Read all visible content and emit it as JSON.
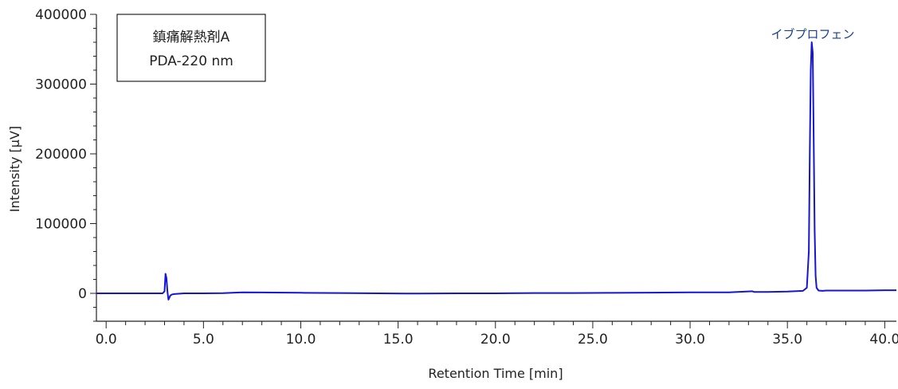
{
  "chart_data": {
    "type": "line",
    "title": "",
    "xlabel": "Retention Time [min]",
    "ylabel": "Intensity [µV]",
    "xlim": [
      -0.5,
      40.6
    ],
    "ylim": [
      -40000,
      400000
    ],
    "x_ticks": [
      "0.0",
      "5.0",
      "10.0",
      "15.0",
      "20.0",
      "25.0",
      "30.0",
      "35.0",
      "40.0"
    ],
    "x_tick_values": [
      0,
      5,
      10,
      15,
      20,
      25,
      30,
      35,
      40
    ],
    "y_ticks": [
      "0",
      "100000",
      "200000",
      "300000",
      "400000"
    ],
    "y_tick_values": [
      0,
      100000,
      200000,
      300000,
      400000
    ],
    "legend": {
      "lines": [
        "鎮痛解熱剤A",
        "PDA-220 nm"
      ],
      "placement": "top-left"
    },
    "annotations": [
      {
        "text": "イブプロフェン",
        "x": 36.3,
        "y": 360000
      }
    ],
    "series": [
      {
        "color": "#1515d4",
        "x": [
          -0.5,
          0.0,
          1.0,
          2.0,
          2.9,
          3.0,
          3.05,
          3.1,
          3.15,
          3.2,
          3.25,
          3.3,
          3.4,
          3.5,
          4.0,
          5.0,
          6.0,
          7.0,
          8.0,
          10.0,
          12.0,
          14.0,
          16.0,
          18.0,
          20.0,
          22.0,
          24.0,
          26.0,
          28.0,
          30.0,
          32.0,
          33.2,
          33.3,
          34.0,
          35.0,
          35.8,
          36.0,
          36.1,
          36.15,
          36.2,
          36.25,
          36.3,
          36.35,
          36.4,
          36.45,
          36.5,
          36.6,
          36.8,
          37.0,
          38.0,
          39.0,
          40.0,
          40.6
        ],
        "y": [
          0,
          0,
          0,
          0,
          0,
          3000,
          28000,
          22000,
          2000,
          -9000,
          -6000,
          -3000,
          -1500,
          -1000,
          0,
          0,
          200,
          1500,
          1200,
          800,
          500,
          0,
          -300,
          0,
          0,
          500,
          500,
          700,
          1000,
          1500,
          1500,
          3000,
          2000,
          2000,
          2500,
          3500,
          8000,
          60000,
          200000,
          320000,
          360000,
          345000,
          220000,
          90000,
          25000,
          8000,
          4000,
          3500,
          4000,
          4000,
          4000,
          4500,
          4500
        ]
      }
    ]
  }
}
